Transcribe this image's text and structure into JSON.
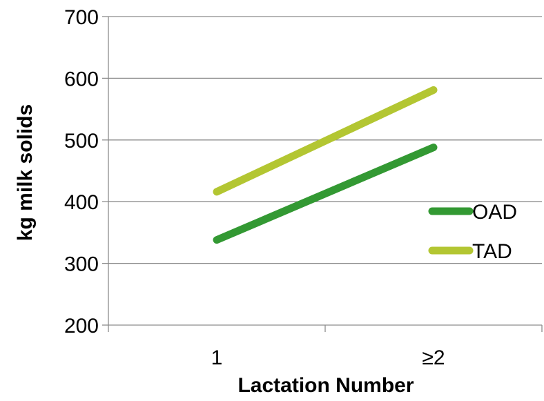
{
  "chart_data": {
    "type": "line",
    "title": "",
    "xlabel": "Lactation Number",
    "ylabel": "kg milk solids",
    "categories": [
      "1",
      "≥2"
    ],
    "ylim": [
      200,
      700
    ],
    "yticks": [
      200,
      300,
      400,
      500,
      600,
      700
    ],
    "grid": true,
    "legend_position": "right",
    "series": [
      {
        "name": "OAD",
        "values": [
          338,
          488
        ],
        "color": "#339933"
      },
      {
        "name": "TAD",
        "values": [
          416,
          581
        ],
        "color": "#b3c632"
      }
    ]
  }
}
